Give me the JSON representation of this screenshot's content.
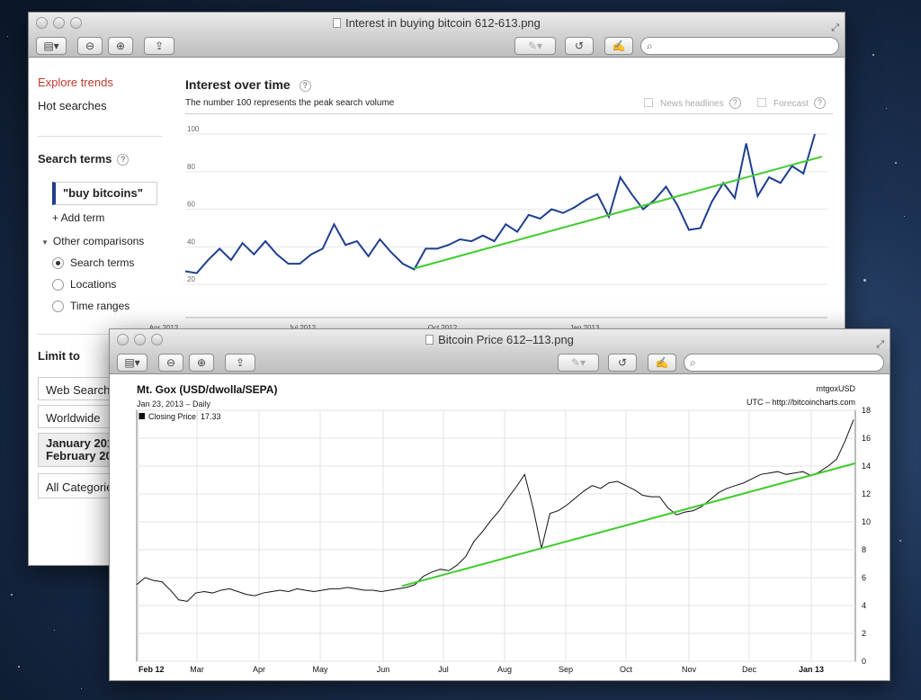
{
  "trends_window": {
    "title": "Interest in buying bitcoin 612-613.png",
    "sidebar": {
      "explore": "Explore trends",
      "hot": "Hot searches",
      "search_terms": "Search terms",
      "term": "\"buy bitcoins\"",
      "add_term": "+ Add term",
      "other": "Other comparisons",
      "options": [
        "Search terms",
        "Locations",
        "Time ranges"
      ],
      "limit_to": "Limit to",
      "filters": [
        "Web Search",
        "Worldwide",
        "January 201",
        "February 20",
        "All Categorie"
      ]
    },
    "chart_header": {
      "title": "Interest over time",
      "subtitle": "The number 100 represents the peak search volume",
      "news": "News headlines",
      "forecast": "Forecast"
    }
  },
  "price_window": {
    "title": "Bitcoin Price 612–113.png",
    "heading": "Mt. Gox (USD/dwolla/SEPA)",
    "date": "Jan 23, 2013 – Daily",
    "legend": "Closing Price: 17.33",
    "symbol": "mtgoxUSD",
    "source": "UTC – http://bitcoincharts.com"
  },
  "colors": {
    "trend_line": "#1f3f8f",
    "price_line": "#111111",
    "fit_line": "#3fcc2e",
    "accent": "#c0392b"
  },
  "chart_data": [
    {
      "type": "line",
      "x_tick_labels": [
        "Apr 2012",
        "Jul 2012",
        "Oct 2012",
        "Jan 2013"
      ],
      "yticks": [
        20,
        40,
        60,
        80,
        100
      ],
      "ylim": [
        10,
        100
      ],
      "grid": true,
      "series": [
        {
          "values": [
            27,
            26,
            33,
            39,
            33,
            42,
            36,
            43,
            36,
            31,
            31,
            36,
            39,
            52,
            41,
            43,
            35,
            44,
            37,
            31,
            28,
            39,
            39,
            41,
            44,
            43,
            46,
            43,
            52,
            48,
            57,
            55,
            60,
            58,
            61,
            65,
            68,
            56,
            77,
            68,
            60,
            65,
            72,
            62,
            49,
            50,
            64,
            74,
            66,
            95,
            67,
            77,
            74,
            83,
            79,
            100
          ]
        },
        {
          "values": [
            28.5,
            88
          ]
        }
      ]
    },
    {
      "type": "line",
      "x_tick_labels": [
        "Feb 12",
        "Mar",
        "Apr",
        "May",
        "Jun",
        "Jul",
        "Aug",
        "Sep",
        "Oct",
        "Nov",
        "Dec",
        "Jan 13"
      ],
      "ylim": [
        0,
        18
      ],
      "yticks": [
        0,
        2,
        4,
        6,
        8,
        10,
        12,
        14,
        16,
        18
      ],
      "grid": true,
      "series": [
        {
          "values": [
            5.5,
            6,
            5.8,
            5.7,
            5.1,
            4.4,
            4.3,
            4.9,
            5.0,
            4.9,
            5.1,
            5.2,
            5.0,
            4.8,
            4.7,
            4.9,
            5.0,
            5.1,
            5.0,
            5.2,
            5.1,
            5.0,
            5.1,
            5.2,
            5.2,
            5.3,
            5.2,
            5.1,
            5.1,
            5.0,
            5.1,
            5.2,
            5.3,
            5.5,
            6.1,
            6.4,
            6.6,
            6.5,
            6.9,
            7.5,
            8.6,
            9.3,
            10.1,
            10.8,
            11.7,
            12.5,
            13.4,
            11.0,
            8.1,
            10.6,
            10.8,
            11.2,
            11.7,
            12.2,
            12.6,
            12.4,
            12.8,
            12.9,
            12.6,
            12.3,
            11.9,
            11.8,
            11.8,
            11.0,
            10.5,
            10.7,
            10.8,
            11.1,
            11.6,
            12.1,
            12.4,
            12.6,
            12.8,
            13.1,
            13.4,
            13.5,
            13.6,
            13.4,
            13.5,
            13.6,
            13.3,
            13.6,
            14.0,
            14.5,
            15.8,
            17.33
          ]
        },
        {
          "values": [
            5.4,
            14.2
          ]
        }
      ]
    }
  ]
}
